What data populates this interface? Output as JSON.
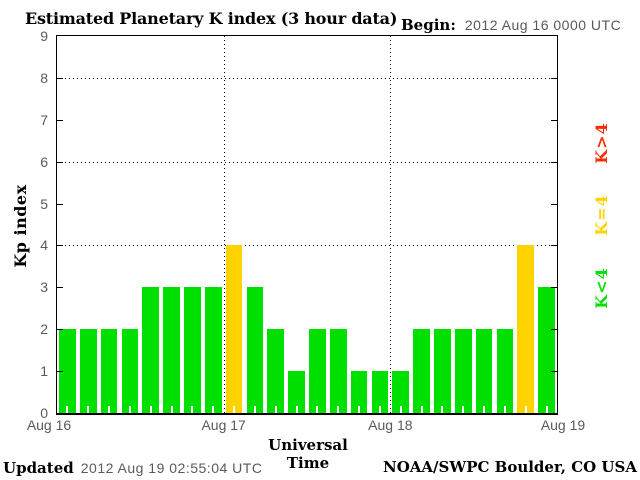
{
  "chart_data": {
    "type": "bar",
    "title": "Estimated Planetary K index (3 hour data)",
    "begin": {
      "label": "Begin:",
      "value": "2012 Aug 16 0000 UTC"
    },
    "xlabel": "Universal Time",
    "ylabel": "Kp index",
    "ylim": [
      0,
      9
    ],
    "yticks": [
      0,
      1,
      2,
      3,
      4,
      5,
      6,
      7,
      8,
      9
    ],
    "dotted_gridlines_y": [
      4,
      6,
      8
    ],
    "grid": "dotted at Kp 4,6,8 and at day boundaries",
    "bin_hours": 3,
    "x_day_labels": [
      "Aug 16",
      "Aug 17",
      "Aug 18",
      "Aug 19"
    ],
    "categories": [
      "Aug16 00-03",
      "Aug16 03-06",
      "Aug16 06-09",
      "Aug16 09-12",
      "Aug16 12-15",
      "Aug16 15-18",
      "Aug16 18-21",
      "Aug16 21-24",
      "Aug17 00-03",
      "Aug17 03-06",
      "Aug17 06-09",
      "Aug17 09-12",
      "Aug17 12-15",
      "Aug17 15-18",
      "Aug17 18-21",
      "Aug17 21-24",
      "Aug18 00-03",
      "Aug18 03-06",
      "Aug18 06-09",
      "Aug18 09-12",
      "Aug18 12-15",
      "Aug18 15-18",
      "Aug18 18-21",
      "Aug18 21-24"
    ],
    "series": [
      {
        "name": "Kp",
        "values": [
          2,
          2,
          2,
          2,
          3,
          3,
          3,
          3,
          4,
          3,
          2,
          1,
          2,
          2,
          1,
          1,
          1,
          2,
          2,
          2,
          2,
          2,
          4,
          3
        ]
      }
    ],
    "colors": {
      "k_below_4": "#00e000",
      "k_equal_4": "#ffd300",
      "k_above_4": "#ff2a00"
    },
    "legend_position": "right, rotated 90deg",
    "legend": [
      {
        "label": "K>4",
        "color": "#ff2a00"
      },
      {
        "label": "K=4",
        "color": "#ffd300"
      },
      {
        "label": "K<4",
        "color": "#00e000"
      }
    ]
  },
  "footer": {
    "updated_label": "Updated",
    "updated_value": "2012 Aug 19 02:55:04 UTC",
    "credit": "NOAA/SWPC Boulder, CO USA"
  }
}
